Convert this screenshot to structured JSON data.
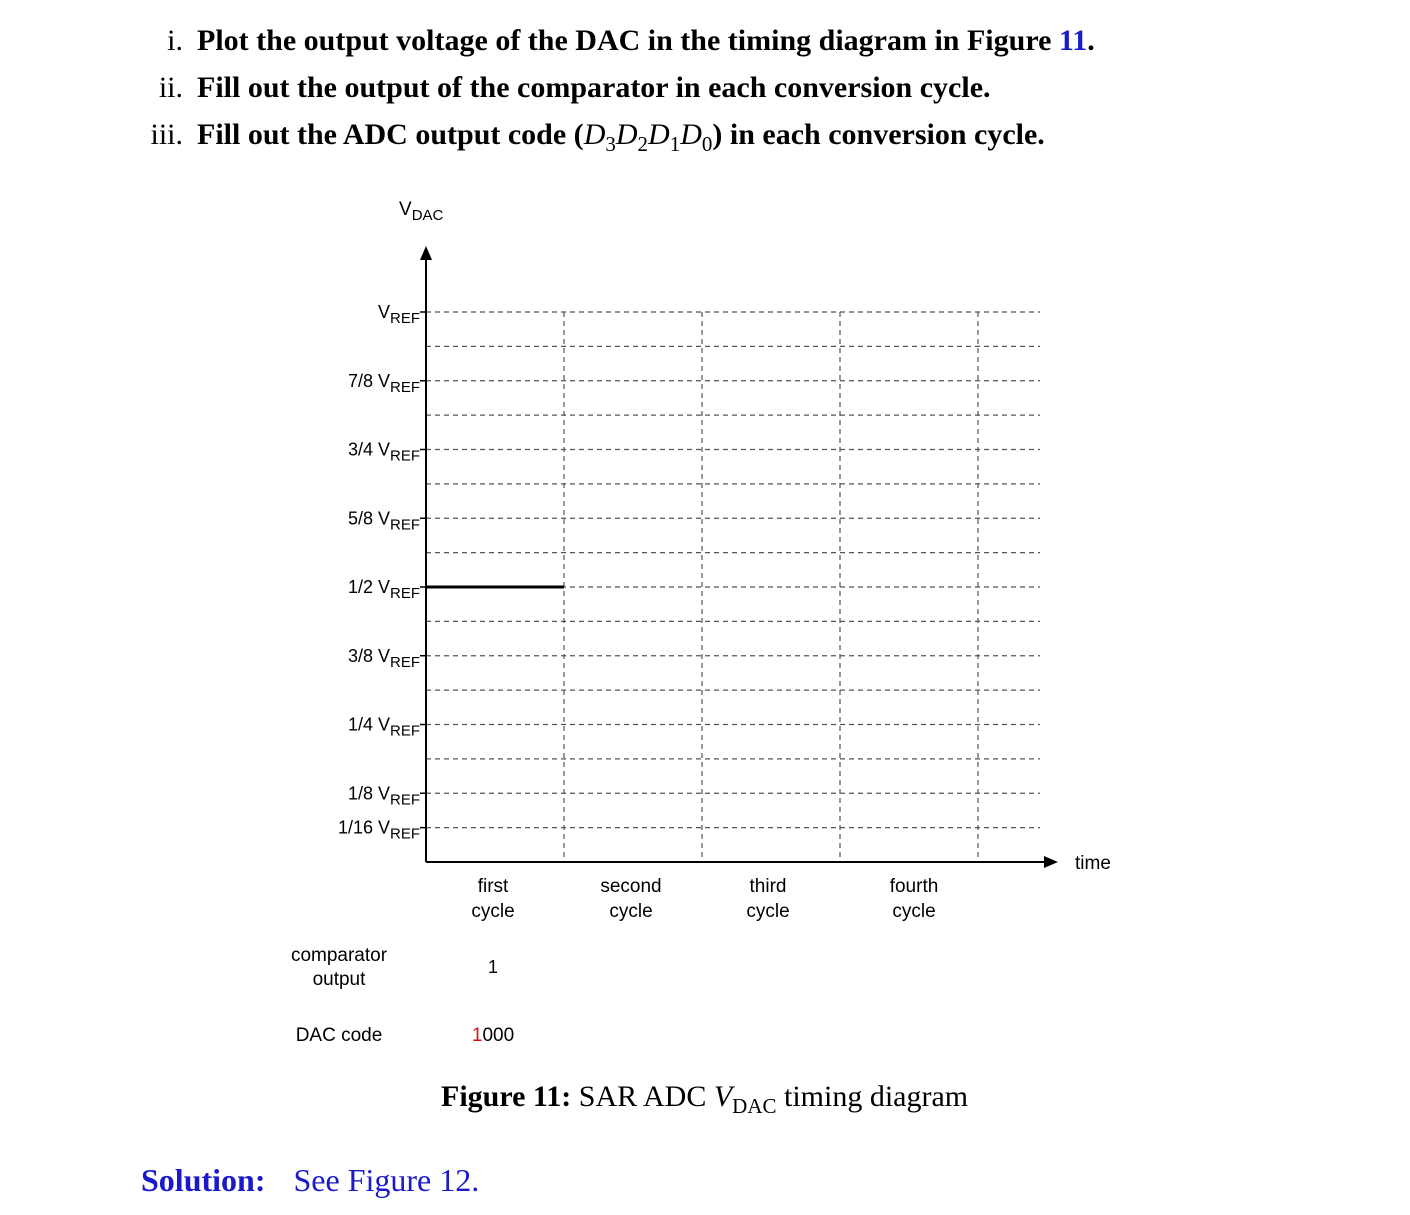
{
  "questions": [
    {
      "num": "i.",
      "pre": "Plot the output voltage of the DAC in the timing diagram in Figure ",
      "ref": "11",
      "post": "."
    },
    {
      "num": "ii.",
      "text": "Fill out the output of the comparator in each conversion cycle."
    },
    {
      "num": "iii.",
      "pre": "Fill out the ADC output code (",
      "math": "D3D2D1D0",
      "post": ") in each conversion cycle."
    }
  ],
  "diagram": {
    "y_axis_label": "V",
    "y_axis_label_sub": "DAC",
    "x_axis_label": "time",
    "y_ticks": [
      {
        "label": "V",
        "sub": "REF",
        "value": 1.0
      },
      {
        "label": "7/8 V",
        "sub": "REF",
        "value": 0.875
      },
      {
        "label": "3/4 V",
        "sub": "REF",
        "value": 0.75
      },
      {
        "label": "5/8 V",
        "sub": "REF",
        "value": 0.625
      },
      {
        "label": "1/2 V",
        "sub": "REF",
        "value": 0.5
      },
      {
        "label": "3/8 V",
        "sub": "REF",
        "value": 0.375
      },
      {
        "label": "1/4 V",
        "sub": "REF",
        "value": 0.25
      },
      {
        "label": "1/8 V",
        "sub": "REF",
        "value": 0.125
      },
      {
        "label": "1/16 V",
        "sub": "REF",
        "value": 0.0625
      }
    ],
    "cycles": [
      {
        "line1": "first",
        "line2": "cycle"
      },
      {
        "line1": "second",
        "line2": "cycle"
      },
      {
        "line1": "third",
        "line2": "cycle"
      },
      {
        "line1": "fourth",
        "line2": "cycle"
      }
    ],
    "dac_trace": [
      {
        "cycle": 1,
        "level": 0.5
      }
    ],
    "comparator_label_line1": "comparator",
    "comparator_label_line2": "output",
    "comparator_values": [
      "1",
      "",
      "",
      ""
    ],
    "dac_code_label": "DAC code",
    "dac_codes": [
      {
        "first": "1",
        "rest": "000"
      }
    ],
    "colors": {
      "highlight": "#e01010",
      "link": "#1a1acc"
    }
  },
  "caption": {
    "bold": "Figure 11:",
    "text_pre": " SAR ADC ",
    "math": "V",
    "math_sub": "DAC",
    "text_post": " timing diagram"
  },
  "solution": {
    "label": "Solution:",
    "text": "See Figure 12."
  }
}
